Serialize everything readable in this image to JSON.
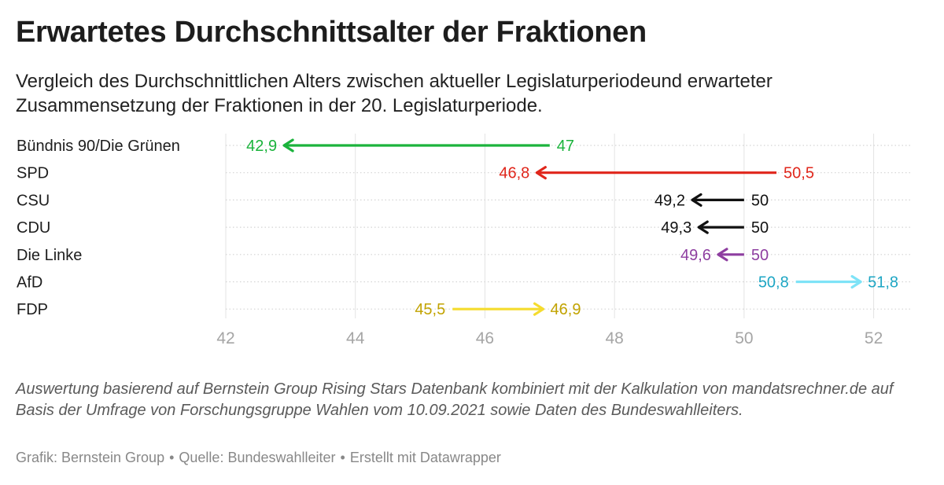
{
  "header": {
    "title": "Erwartetes Durchschnittsalter der Fraktionen",
    "subtitle": "Vergleich des Durchschnittlichen Alters zwischen aktueller Legislaturperiodeund erwarteter Zusammensetzung der Fraktionen in der 20. Legislaturperiode."
  },
  "chart_data": {
    "type": "arrow",
    "title": "Erwartetes Durchschnittsalter der Fraktionen",
    "xlim": [
      42,
      52.6
    ],
    "xticks": [
      42,
      44,
      46,
      48,
      50,
      52
    ],
    "xlabel": "",
    "ylabel": "",
    "grid": true,
    "series": [
      {
        "name": "Bündnis 90/Die Grünen",
        "from": 47,
        "to": 42.9,
        "from_label": "47",
        "to_label": "42,9",
        "color": "#1bb33c"
      },
      {
        "name": "SPD",
        "from": 50.5,
        "to": 46.8,
        "from_label": "50,5",
        "to_label": "46,8",
        "color": "#e0261b"
      },
      {
        "name": "CSU",
        "from": 50,
        "to": 49.2,
        "from_label": "50",
        "to_label": "49,2",
        "color": "#111111"
      },
      {
        "name": "CDU",
        "from": 50,
        "to": 49.3,
        "from_label": "50",
        "to_label": "49,3",
        "color": "#111111"
      },
      {
        "name": "Die Linke",
        "from": 50,
        "to": 49.6,
        "from_label": "50",
        "to_label": "49,6",
        "color": "#8e3ea0"
      },
      {
        "name": "AfD",
        "from": 50.8,
        "to": 51.8,
        "from_label": "50,8",
        "to_label": "51,8",
        "color": "#1ea6c4",
        "arrow_color": "#7ee3f7"
      },
      {
        "name": "FDP",
        "from": 45.5,
        "to": 46.9,
        "from_label": "45,5",
        "to_label": "46,9",
        "color": "#c2a300",
        "arrow_color": "#f5dc2e"
      }
    ]
  },
  "footer": {
    "notes": "Auswertung basierend auf Bernstein Group Rising Stars Datenbank kombiniert mit der Kalkulation von mandatsrechner.de auf Basis der Umfrage von Forschungsgruppe Wahlen vom 10.09.2021 sowie Daten des Bundeswahlleiters.",
    "grafik": "Grafik: Bernstein Group",
    "quelle": "Quelle: Bundeswahlleiter",
    "erstellt": "Erstellt mit Datawrapper",
    "separator": "•"
  }
}
